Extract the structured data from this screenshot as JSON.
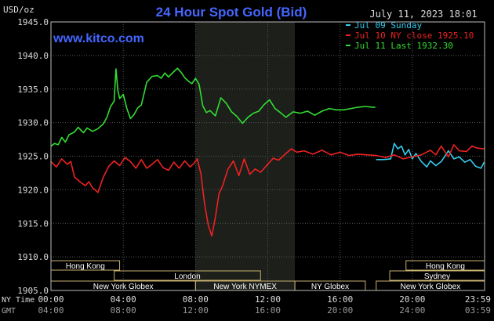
{
  "chart_data": {
    "type": "line",
    "title": "24 Hour Spot Gold (Bid)",
    "unit_label": "USD/oz",
    "timestamp": "July 11, 2023 18:01",
    "source": "www.kitco.com",
    "ylim": [
      1905,
      1945
    ],
    "y_ticks": [
      "1945.0",
      "1940.0",
      "1935.0",
      "1930.0",
      "1925.0",
      "1920.0",
      "1915.0",
      "1910.0",
      "1905.0"
    ],
    "grid": true,
    "legend_position": "top-right",
    "x_rows": [
      {
        "label": "NY Time",
        "ticks": [
          "00:00",
          "04:00",
          "08:00",
          "12:00",
          "16:00",
          "20:00",
          "23:59"
        ]
      },
      {
        "label": "GMT",
        "ticks": [
          "04:00",
          "08:00",
          "12:00",
          "16:00",
          "20:00",
          "24:00",
          "03:59"
        ]
      }
    ],
    "series": [
      {
        "name": "Jul 09 Sunday",
        "color": "#33ccee",
        "x": [
          18.0,
          18.4,
          18.8,
          19.0,
          19.2,
          19.4,
          19.6,
          19.8,
          20.0,
          20.2,
          20.5,
          20.8,
          21.0,
          21.3,
          21.6,
          22.0,
          22.3,
          22.6,
          22.9,
          23.2,
          23.5,
          23.8,
          23.98
        ],
        "values": [
          1924.5,
          1924.5,
          1924.6,
          1926.9,
          1926.1,
          1926.5,
          1925.2,
          1926.0,
          1924.6,
          1925.4,
          1924.2,
          1923.4,
          1924.3,
          1923.6,
          1924.2,
          1925.8,
          1924.6,
          1924.9,
          1924.1,
          1924.5,
          1923.5,
          1923.2,
          1924.1
        ]
      },
      {
        "name": "Jul 10 NY close 1925.10",
        "color": "#ee2222",
        "x": [
          0.0,
          0.3,
          0.6,
          0.9,
          1.1,
          1.3,
          1.6,
          1.9,
          2.1,
          2.3,
          2.6,
          2.9,
          3.2,
          3.5,
          3.8,
          4.1,
          4.4,
          4.7,
          5.0,
          5.3,
          5.6,
          5.9,
          6.2,
          6.5,
          6.8,
          7.1,
          7.4,
          7.7,
          7.9,
          8.1,
          8.3,
          8.5,
          8.7,
          8.9,
          9.1,
          9.3,
          9.5,
          9.8,
          10.1,
          10.4,
          10.7,
          11.0,
          11.3,
          11.6,
          12.0,
          12.3,
          12.6,
          13.0,
          13.3,
          13.6,
          14.0,
          14.5,
          15.0,
          15.5,
          16.0,
          16.5,
          17.0,
          17.5,
          18.0,
          18.5,
          19.0,
          19.5,
          20.0,
          20.5,
          21.0,
          21.3,
          21.6,
          22.0,
          22.3,
          22.6,
          23.0,
          23.3,
          23.6,
          23.98
        ],
        "values": [
          1924.2,
          1923.4,
          1924.6,
          1923.8,
          1924.2,
          1921.9,
          1921.2,
          1920.6,
          1921.2,
          1920.3,
          1919.6,
          1921.9,
          1923.5,
          1924.3,
          1923.6,
          1924.8,
          1924.2,
          1923.2,
          1924.5,
          1923.2,
          1923.8,
          1924.5,
          1923.3,
          1922.9,
          1924.1,
          1923.2,
          1924.3,
          1923.4,
          1923.9,
          1924.6,
          1922.4,
          1917.9,
          1914.8,
          1913.1,
          1915.9,
          1919.4,
          1920.6,
          1923.1,
          1924.3,
          1922.1,
          1924.6,
          1922.3,
          1923.1,
          1922.6,
          1923.8,
          1924.7,
          1924.4,
          1925.4,
          1926.1,
          1925.6,
          1925.8,
          1925.3,
          1925.9,
          1925.2,
          1925.6,
          1925.1,
          1925.3,
          1925.2,
          1925.1,
          1924.8,
          1925.2,
          1924.6,
          1924.9,
          1925.2,
          1925.9,
          1925.2,
          1926.5,
          1924.9,
          1926.7,
          1925.8,
          1925.7,
          1926.5,
          1926.2,
          1926.1
        ]
      },
      {
        "name": "Jul 11 Last 1932.30",
        "color": "#33dd33",
        "x": [
          0.0,
          0.2,
          0.4,
          0.6,
          0.8,
          1.0,
          1.3,
          1.5,
          1.8,
          2.0,
          2.3,
          2.6,
          2.9,
          3.1,
          3.3,
          3.5,
          3.6,
          3.7,
          3.8,
          4.0,
          4.2,
          4.4,
          4.6,
          4.8,
          5.0,
          5.3,
          5.6,
          5.9,
          6.1,
          6.3,
          6.5,
          6.8,
          7.0,
          7.2,
          7.4,
          7.6,
          7.8,
          8.0,
          8.2,
          8.4,
          8.6,
          8.8,
          9.1,
          9.4,
          9.7,
          10.0,
          10.3,
          10.6,
          10.9,
          11.2,
          11.5,
          11.8,
          12.1,
          12.4,
          12.7,
          13.0,
          13.4,
          13.8,
          14.2,
          14.6,
          15.0,
          15.4,
          15.8,
          16.2,
          16.6,
          17.0,
          17.4,
          17.8,
          17.95
        ],
        "values": [
          1926.5,
          1926.9,
          1926.7,
          1927.8,
          1927.1,
          1928.2,
          1928.6,
          1929.3,
          1928.5,
          1929.2,
          1928.7,
          1929.1,
          1929.8,
          1930.8,
          1932.4,
          1933.2,
          1938.0,
          1934.8,
          1933.6,
          1934.2,
          1932.1,
          1930.6,
          1931.2,
          1932.2,
          1932.6,
          1936.0,
          1936.9,
          1937.0,
          1936.6,
          1937.4,
          1936.8,
          1937.6,
          1938.1,
          1937.5,
          1936.7,
          1936.2,
          1935.8,
          1936.6,
          1935.7,
          1932.5,
          1931.5,
          1931.8,
          1931.0,
          1933.7,
          1932.9,
          1931.6,
          1930.9,
          1929.9,
          1930.8,
          1931.4,
          1931.7,
          1932.7,
          1933.4,
          1932.1,
          1931.5,
          1930.8,
          1931.6,
          1931.4,
          1931.7,
          1931.1,
          1931.7,
          1932.1,
          1931.9,
          1931.9,
          1932.1,
          1932.3,
          1932.4,
          1932.3,
          1932.3
        ]
      }
    ],
    "shaded_region": [
      8.0,
      13.5
    ],
    "sessions": [
      {
        "label": "Hong Kong",
        "start": 0.0,
        "end": 3.8,
        "row": 0
      },
      {
        "label": "Hong Kong",
        "start": 19.65,
        "end": 24.0,
        "row": 0
      },
      {
        "label": "London",
        "start": 3.5,
        "end": 11.6,
        "row": 1
      },
      {
        "label": "Sydney",
        "start": 18.75,
        "end": 24.0,
        "row": 1
      },
      {
        "label": "New York Globex",
        "start": 0.0,
        "end": 8.0,
        "row": 2
      },
      {
        "label": "New York NYMEX",
        "start": 8.0,
        "end": 13.5,
        "row": 2
      },
      {
        "label": "NY Globex",
        "start": 13.5,
        "end": 17.4,
        "row": 2
      },
      {
        "label": "New York Globex",
        "start": 18.0,
        "end": 24.0,
        "row": 2
      }
    ]
  }
}
